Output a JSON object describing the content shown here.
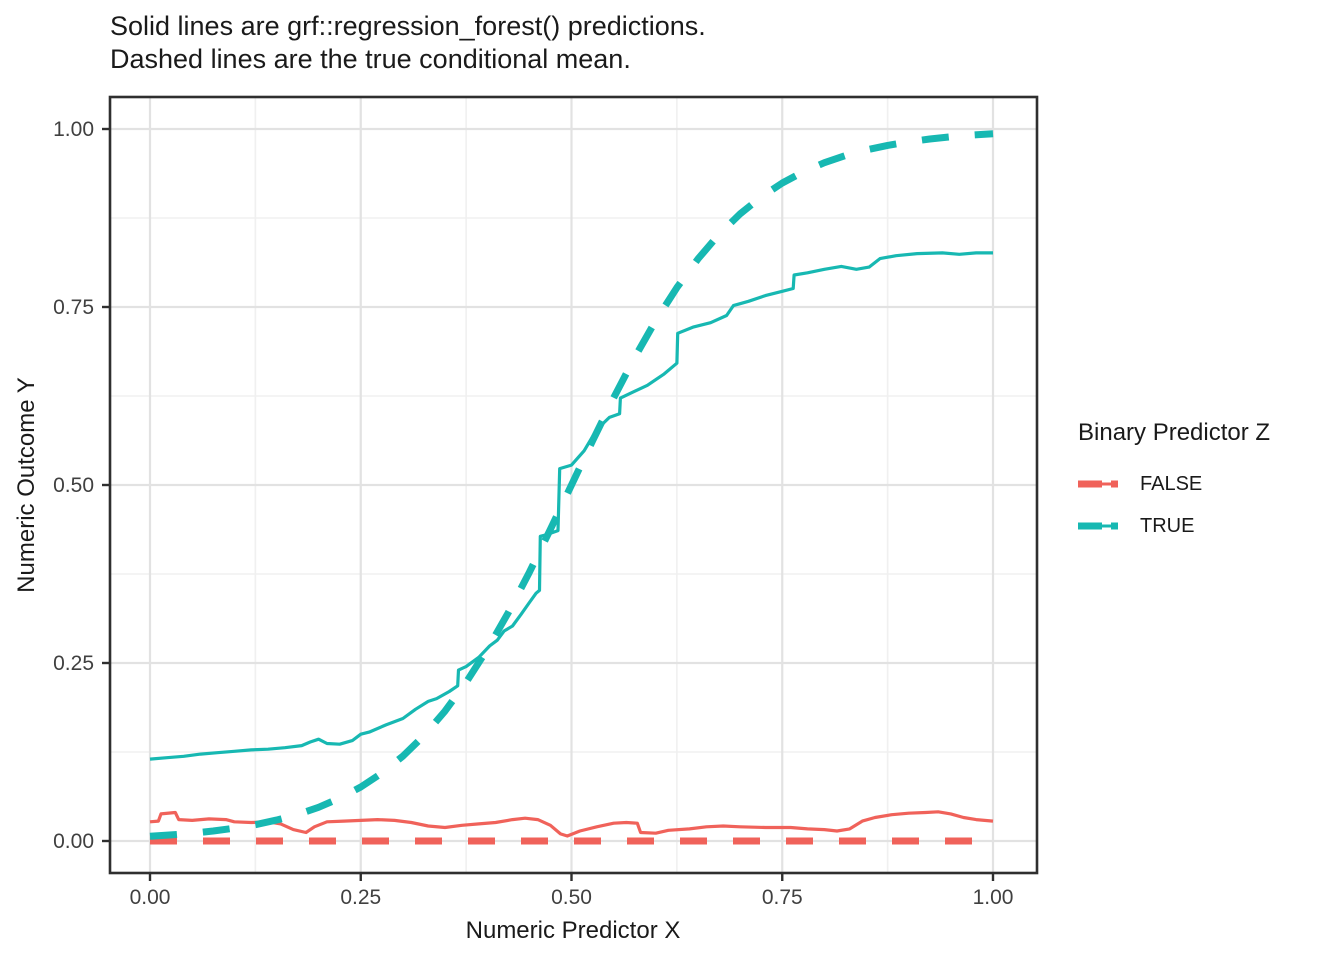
{
  "title": {
    "line1": "Solid lines are grf::regression_forest() predictions.",
    "line2": "Dashed lines are the true conditional mean."
  },
  "axes": {
    "x": {
      "label": "Numeric Predictor X",
      "tick_labels": [
        "0.00",
        "0.25",
        "0.50",
        "0.75",
        "1.00"
      ],
      "tick_values": [
        0,
        0.25,
        0.5,
        0.75,
        1.0
      ],
      "minor_values": [
        0.125,
        0.375,
        0.625,
        0.875
      ]
    },
    "y": {
      "label": "Numeric Outcome Y",
      "tick_labels": [
        "0.00",
        "0.25",
        "0.50",
        "0.75",
        "1.00"
      ],
      "tick_values": [
        0,
        0.25,
        0.5,
        0.75,
        1.0
      ],
      "minor_values": [
        0.125,
        0.375,
        0.625,
        0.875
      ]
    }
  },
  "legend": {
    "title": "Binary Predictor Z",
    "items": [
      {
        "label": "FALSE",
        "color": "#F0625A"
      },
      {
        "label": "TRUE",
        "color": "#17B8B2"
      }
    ]
  },
  "colors": {
    "false_series": "#F0625A",
    "true_series": "#17B8B2",
    "grid_major": "#E2E2E2",
    "grid_minor": "#F0F0F0",
    "panel_border": "#2F2F2F",
    "tick_label": "#404040"
  },
  "chart_data": {
    "type": "line",
    "title": "Solid lines are grf::regression_forest() predictions. Dashed lines are the true conditional mean.",
    "xlabel": "Numeric Predictor X",
    "ylabel": "Numeric Outcome Y",
    "xlim": [
      0,
      1
    ],
    "ylim": [
      0,
      1
    ],
    "grid": true,
    "legend_position": "right",
    "legend_title": "Binary Predictor Z",
    "series": [
      {
        "name": "FALSE prediction (solid)",
        "group": "FALSE",
        "color": "#F0625A",
        "linetype": "solid",
        "points": [
          [
            0.0,
            0.027
          ],
          [
            0.01,
            0.028
          ],
          [
            0.013,
            0.038
          ],
          [
            0.03,
            0.04
          ],
          [
            0.034,
            0.03
          ],
          [
            0.05,
            0.029
          ],
          [
            0.07,
            0.031
          ],
          [
            0.09,
            0.03
          ],
          [
            0.1,
            0.027
          ],
          [
            0.12,
            0.026
          ],
          [
            0.14,
            0.027
          ],
          [
            0.155,
            0.024
          ],
          [
            0.17,
            0.016
          ],
          [
            0.185,
            0.012
          ],
          [
            0.195,
            0.02
          ],
          [
            0.21,
            0.027
          ],
          [
            0.23,
            0.028
          ],
          [
            0.25,
            0.029
          ],
          [
            0.27,
            0.03
          ],
          [
            0.29,
            0.029
          ],
          [
            0.31,
            0.026
          ],
          [
            0.33,
            0.021
          ],
          [
            0.35,
            0.019
          ],
          [
            0.37,
            0.022
          ],
          [
            0.39,
            0.024
          ],
          [
            0.41,
            0.026
          ],
          [
            0.43,
            0.03
          ],
          [
            0.445,
            0.032
          ],
          [
            0.46,
            0.03
          ],
          [
            0.475,
            0.022
          ],
          [
            0.487,
            0.01
          ],
          [
            0.495,
            0.007
          ],
          [
            0.51,
            0.014
          ],
          [
            0.53,
            0.02
          ],
          [
            0.55,
            0.025
          ],
          [
            0.565,
            0.026
          ],
          [
            0.578,
            0.025
          ],
          [
            0.582,
            0.012
          ],
          [
            0.6,
            0.011
          ],
          [
            0.615,
            0.015
          ],
          [
            0.64,
            0.017
          ],
          [
            0.66,
            0.02
          ],
          [
            0.68,
            0.021
          ],
          [
            0.7,
            0.02
          ],
          [
            0.73,
            0.019
          ],
          [
            0.76,
            0.019
          ],
          [
            0.78,
            0.017
          ],
          [
            0.8,
            0.016
          ],
          [
            0.815,
            0.014
          ],
          [
            0.83,
            0.017
          ],
          [
            0.845,
            0.028
          ],
          [
            0.86,
            0.033
          ],
          [
            0.88,
            0.037
          ],
          [
            0.9,
            0.039
          ],
          [
            0.92,
            0.04
          ],
          [
            0.935,
            0.041
          ],
          [
            0.95,
            0.038
          ],
          [
            0.965,
            0.033
          ],
          [
            0.98,
            0.03
          ],
          [
            1.0,
            0.028
          ]
        ]
      },
      {
        "name": "TRUE prediction (solid)",
        "group": "TRUE",
        "color": "#17B8B2",
        "linetype": "solid",
        "points": [
          [
            0.0,
            0.115
          ],
          [
            0.02,
            0.117
          ],
          [
            0.04,
            0.119
          ],
          [
            0.06,
            0.122
          ],
          [
            0.08,
            0.124
          ],
          [
            0.1,
            0.126
          ],
          [
            0.12,
            0.128
          ],
          [
            0.14,
            0.129
          ],
          [
            0.16,
            0.131
          ],
          [
            0.18,
            0.134
          ],
          [
            0.19,
            0.139
          ],
          [
            0.2,
            0.143
          ],
          [
            0.21,
            0.137
          ],
          [
            0.225,
            0.136
          ],
          [
            0.24,
            0.141
          ],
          [
            0.25,
            0.15
          ],
          [
            0.26,
            0.153
          ],
          [
            0.28,
            0.163
          ],
          [
            0.3,
            0.172
          ],
          [
            0.315,
            0.185
          ],
          [
            0.33,
            0.196
          ],
          [
            0.34,
            0.2
          ],
          [
            0.355,
            0.21
          ],
          [
            0.365,
            0.218
          ],
          [
            0.366,
            0.24
          ],
          [
            0.375,
            0.245
          ],
          [
            0.39,
            0.258
          ],
          [
            0.403,
            0.274
          ],
          [
            0.412,
            0.282
          ],
          [
            0.42,
            0.295
          ],
          [
            0.43,
            0.302
          ],
          [
            0.44,
            0.318
          ],
          [
            0.45,
            0.335
          ],
          [
            0.458,
            0.348
          ],
          [
            0.462,
            0.352
          ],
          [
            0.463,
            0.428
          ],
          [
            0.47,
            0.43
          ],
          [
            0.484,
            0.436
          ],
          [
            0.486,
            0.523
          ],
          [
            0.5,
            0.528
          ],
          [
            0.515,
            0.548
          ],
          [
            0.53,
            0.578
          ],
          [
            0.545,
            0.595
          ],
          [
            0.557,
            0.6
          ],
          [
            0.558,
            0.622
          ],
          [
            0.572,
            0.63
          ],
          [
            0.59,
            0.64
          ],
          [
            0.61,
            0.656
          ],
          [
            0.625,
            0.671
          ],
          [
            0.626,
            0.713
          ],
          [
            0.645,
            0.722
          ],
          [
            0.665,
            0.728
          ],
          [
            0.684,
            0.738
          ],
          [
            0.692,
            0.752
          ],
          [
            0.71,
            0.758
          ],
          [
            0.73,
            0.766
          ],
          [
            0.75,
            0.772
          ],
          [
            0.763,
            0.776
          ],
          [
            0.764,
            0.795
          ],
          [
            0.78,
            0.798
          ],
          [
            0.8,
            0.803
          ],
          [
            0.82,
            0.807
          ],
          [
            0.838,
            0.803
          ],
          [
            0.853,
            0.806
          ],
          [
            0.866,
            0.818
          ],
          [
            0.885,
            0.822
          ],
          [
            0.91,
            0.825
          ],
          [
            0.94,
            0.826
          ],
          [
            0.96,
            0.824
          ],
          [
            0.98,
            0.826
          ],
          [
            1.0,
            0.826
          ]
        ]
      },
      {
        "name": "FALSE true conditional mean (dashed)",
        "group": "FALSE",
        "color": "#F0625A",
        "linetype": "dashed",
        "points": [
          [
            0.0,
            0.0
          ],
          [
            1.0,
            0.0
          ]
        ]
      },
      {
        "name": "TRUE true conditional mean (dashed)",
        "group": "TRUE",
        "color": "#17B8B2",
        "linetype": "dashed",
        "points": [
          [
            0.0,
            0.0067
          ],
          [
            0.025,
            0.0086
          ],
          [
            0.05,
            0.011
          ],
          [
            0.075,
            0.0141
          ],
          [
            0.1,
            0.018
          ],
          [
            0.125,
            0.0229
          ],
          [
            0.15,
            0.0293
          ],
          [
            0.175,
            0.0372
          ],
          [
            0.2,
            0.0474
          ],
          [
            0.225,
            0.0601
          ],
          [
            0.25,
            0.0759
          ],
          [
            0.275,
            0.0953
          ],
          [
            0.3,
            0.1192
          ],
          [
            0.325,
            0.148
          ],
          [
            0.35,
            0.1824
          ],
          [
            0.375,
            0.2227
          ],
          [
            0.4,
            0.2689
          ],
          [
            0.425,
            0.3208
          ],
          [
            0.45,
            0.3775
          ],
          [
            0.475,
            0.4378
          ],
          [
            0.5,
            0.5
          ],
          [
            0.525,
            0.5622
          ],
          [
            0.55,
            0.6225
          ],
          [
            0.575,
            0.6792
          ],
          [
            0.6,
            0.7311
          ],
          [
            0.625,
            0.7773
          ],
          [
            0.65,
            0.8176
          ],
          [
            0.675,
            0.852
          ],
          [
            0.7,
            0.8808
          ],
          [
            0.725,
            0.9047
          ],
          [
            0.75,
            0.9241
          ],
          [
            0.775,
            0.9399
          ],
          [
            0.8,
            0.9526
          ],
          [
            0.825,
            0.9628
          ],
          [
            0.85,
            0.9707
          ],
          [
            0.875,
            0.977
          ],
          [
            0.9,
            0.982
          ],
          [
            0.925,
            0.9859
          ],
          [
            0.95,
            0.989
          ],
          [
            0.975,
            0.9914
          ],
          [
            1.0,
            0.9933
          ]
        ]
      }
    ]
  }
}
